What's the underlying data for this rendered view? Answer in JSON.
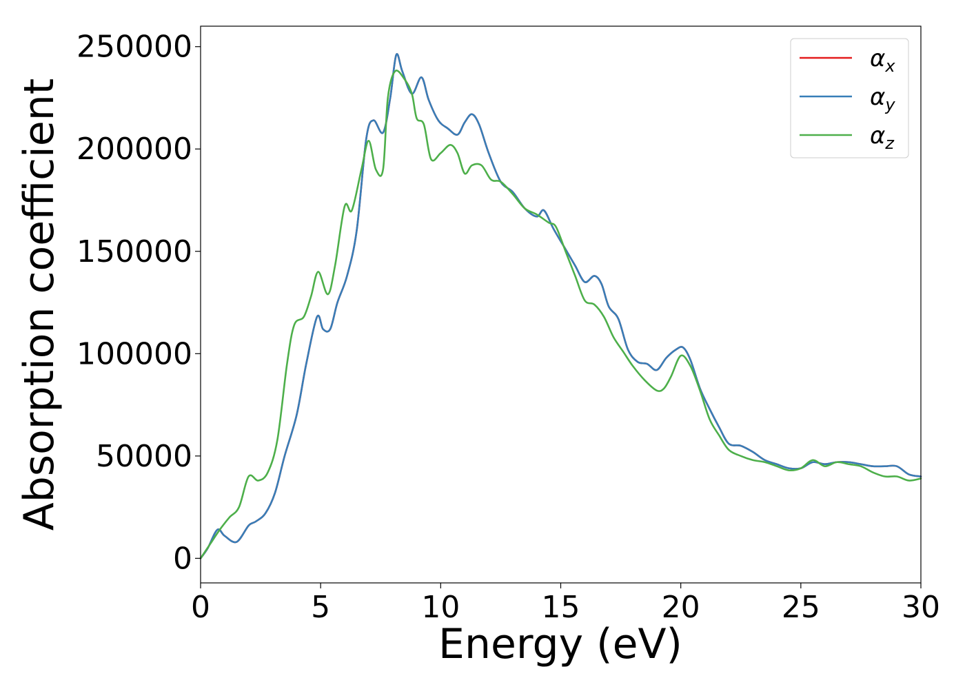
{
  "chart_data": {
    "type": "line",
    "xlabel": "Energy (eV)",
    "ylabel": "Absorption coefficient",
    "xlim": [
      0,
      30
    ],
    "ylim": [
      -12000,
      260000
    ],
    "xticks": [
      0,
      5,
      10,
      15,
      20,
      25,
      30
    ],
    "yticks": [
      0,
      50000,
      100000,
      150000,
      200000,
      250000
    ],
    "grid": false,
    "legend_position": "top-right",
    "series": [
      {
        "name": "αx",
        "legend_base": "α",
        "legend_sub": "x",
        "color": "#e41a1c",
        "x": [
          0,
          0.3,
          0.7,
          1.0,
          1.5,
          2.0,
          2.3,
          2.7,
          3.1,
          3.5,
          4.0,
          4.4,
          4.85,
          5.1,
          5.4,
          5.7,
          6.1,
          6.5,
          6.9,
          7.2,
          7.6,
          7.9,
          8.15,
          8.4,
          8.8,
          9.2,
          9.5,
          9.9,
          10.3,
          10.7,
          11.0,
          11.3,
          11.6,
          12.0,
          12.5,
          13.0,
          13.5,
          14.0,
          14.3,
          14.7,
          15.2,
          15.6,
          16.0,
          16.4,
          16.7,
          17.0,
          17.4,
          17.8,
          18.2,
          18.6,
          19.0,
          19.4,
          19.8,
          20.1,
          20.4,
          20.8,
          21.2,
          21.6,
          22.0,
          22.5,
          23.0,
          23.5,
          24.0,
          24.5,
          25.0,
          25.5,
          26.0,
          26.5,
          27.0,
          27.5,
          28.0,
          28.5,
          29.0,
          29.5,
          30.0
        ],
        "y": [
          0,
          5000,
          14000,
          11000,
          8000,
          16000,
          18000,
          22000,
          32000,
          50000,
          70000,
          95000,
          118000,
          112000,
          112000,
          125000,
          138000,
          160000,
          205000,
          214000,
          208000,
          225000,
          246000,
          238000,
          227000,
          235000,
          224000,
          214000,
          210000,
          207000,
          213000,
          217000,
          212000,
          198000,
          184000,
          179000,
          171000,
          167000,
          170000,
          161000,
          151000,
          143000,
          135000,
          138000,
          134000,
          123000,
          117000,
          102000,
          96000,
          95000,
          92000,
          98000,
          102000,
          103000,
          97000,
          83000,
          73000,
          64000,
          56000,
          55000,
          52000,
          48000,
          46000,
          44000,
          44000,
          47000,
          46000,
          47000,
          47000,
          46000,
          45000,
          45000,
          45000,
          41000,
          40000
        ]
      },
      {
        "name": "αy",
        "legend_base": "α",
        "legend_sub": "y",
        "color": "#377eb8",
        "x": [
          0,
          0.3,
          0.7,
          1.0,
          1.5,
          2.0,
          2.3,
          2.7,
          3.1,
          3.5,
          4.0,
          4.4,
          4.85,
          5.1,
          5.4,
          5.7,
          6.1,
          6.5,
          6.9,
          7.2,
          7.6,
          7.9,
          8.15,
          8.4,
          8.8,
          9.2,
          9.5,
          9.9,
          10.3,
          10.7,
          11.0,
          11.3,
          11.6,
          12.0,
          12.5,
          13.0,
          13.5,
          14.0,
          14.3,
          14.7,
          15.2,
          15.6,
          16.0,
          16.4,
          16.7,
          17.0,
          17.4,
          17.8,
          18.2,
          18.6,
          19.0,
          19.4,
          19.8,
          20.1,
          20.4,
          20.8,
          21.2,
          21.6,
          22.0,
          22.5,
          23.0,
          23.5,
          24.0,
          24.5,
          25.0,
          25.5,
          26.0,
          26.5,
          27.0,
          27.5,
          28.0,
          28.5,
          29.0,
          29.5,
          30.0
        ],
        "y": [
          0,
          5000,
          14000,
          11000,
          8000,
          16000,
          18000,
          22000,
          32000,
          50000,
          70000,
          95000,
          118000,
          112000,
          112000,
          125000,
          138000,
          160000,
          205000,
          214000,
          208000,
          225000,
          246000,
          238000,
          227000,
          235000,
          224000,
          214000,
          210000,
          207000,
          213000,
          217000,
          212000,
          198000,
          184000,
          179000,
          171000,
          167000,
          170000,
          161000,
          151000,
          143000,
          135000,
          138000,
          134000,
          123000,
          117000,
          102000,
          96000,
          95000,
          92000,
          98000,
          102000,
          103000,
          97000,
          83000,
          73000,
          64000,
          56000,
          55000,
          52000,
          48000,
          46000,
          44000,
          44000,
          47000,
          46000,
          47000,
          47000,
          46000,
          45000,
          45000,
          45000,
          41000,
          40000
        ]
      },
      {
        "name": "αz",
        "legend_base": "α",
        "legend_sub": "z",
        "color": "#4daf4a",
        "x": [
          0,
          0.4,
          0.8,
          1.2,
          1.6,
          2.0,
          2.4,
          2.8,
          3.2,
          3.6,
          3.9,
          4.3,
          4.6,
          4.9,
          5.3,
          5.6,
          6.0,
          6.3,
          6.7,
          7.0,
          7.3,
          7.6,
          7.8,
          8.1,
          8.5,
          8.8,
          9.0,
          9.3,
          9.6,
          10.0,
          10.4,
          10.7,
          11.0,
          11.3,
          11.7,
          12.1,
          12.5,
          13.0,
          13.5,
          14.0,
          14.5,
          14.8,
          15.2,
          15.6,
          16.0,
          16.4,
          16.8,
          17.2,
          17.6,
          18.0,
          18.5,
          19.0,
          19.3,
          19.6,
          20.0,
          20.4,
          20.8,
          21.2,
          21.6,
          22.0,
          22.5,
          23.0,
          23.5,
          24.0,
          24.5,
          25.0,
          25.5,
          26.0,
          26.5,
          27.0,
          27.5,
          28.0,
          28.5,
          29.0,
          29.5,
          30.0
        ],
        "y": [
          0,
          7000,
          14000,
          20000,
          25000,
          40000,
          38000,
          42000,
          58000,
          95000,
          114000,
          118000,
          128000,
          140000,
          129000,
          143000,
          172000,
          170000,
          190000,
          204000,
          190000,
          190000,
          225000,
          238000,
          234000,
          227000,
          215000,
          212000,
          195000,
          198000,
          202000,
          198000,
          188000,
          192000,
          192000,
          185000,
          184000,
          178000,
          171000,
          168000,
          164000,
          162000,
          150000,
          138000,
          126000,
          124000,
          118000,
          108000,
          101000,
          94000,
          87000,
          82000,
          83000,
          89000,
          99000,
          94000,
          82000,
          68000,
          60000,
          53000,
          50000,
          48000,
          47000,
          45000,
          43000,
          44000,
          48000,
          45000,
          47000,
          46000,
          45000,
          42000,
          40000,
          40000,
          38000,
          39000
        ]
      }
    ]
  }
}
